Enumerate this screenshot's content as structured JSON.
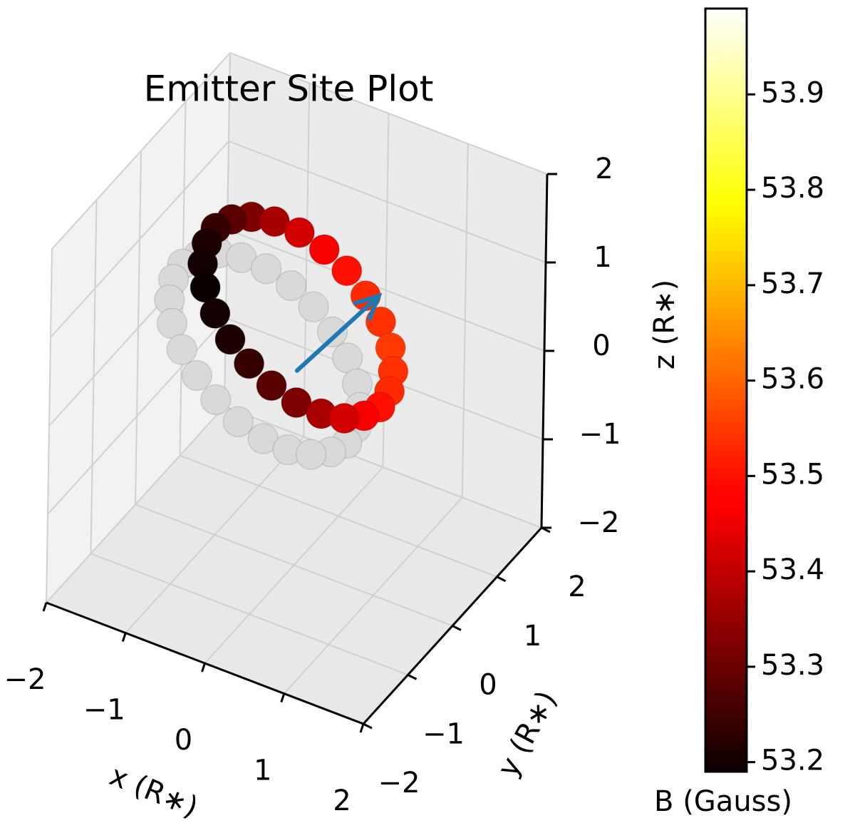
{
  "chart_data": {
    "type": "scatter3d",
    "title": "Emitter Site Plot",
    "xlabel": "x (R∗)",
    "ylabel": "y (R∗)",
    "zlabel": "z (R∗)",
    "xlim": [
      -2,
      2
    ],
    "ylim": [
      -2,
      2
    ],
    "zlim": [
      -2,
      2
    ],
    "xticks": [
      {
        "value": -2,
        "label": "−2"
      },
      {
        "value": -1,
        "label": "−1"
      },
      0,
      1,
      2
    ],
    "yticks": [
      {
        "value": -2,
        "label": "−2"
      },
      {
        "value": -1,
        "label": "−1"
      },
      0,
      1,
      2
    ],
    "zticks": [
      {
        "value": -2,
        "label": "−2"
      },
      {
        "value": -1,
        "label": "−1"
      },
      0,
      1,
      2
    ],
    "grid": true,
    "series": [
      {
        "color": "#d9d9d9",
        "x": [
          1.23,
          1.17,
          1.02,
          0.78,
          0.46,
          0.09,
          -0.3,
          -0.69,
          -1.06,
          -1.38,
          -1.62,
          -1.77,
          -1.83,
          -1.77,
          -1.62,
          -1.38,
          -1.06,
          -0.69,
          -0.3,
          0.09,
          0.46,
          0.78,
          1.02,
          1.17
        ],
        "y": [
          -1.08,
          -0.76,
          -0.41,
          -0.04,
          0.31,
          0.63,
          0.9,
          1.09,
          1.19,
          1.2,
          1.11,
          0.93,
          0.68,
          0.37,
          0.01,
          -0.36,
          -0.71,
          -1.03,
          -1.3,
          -1.49,
          -1.59,
          -1.6,
          -1.51,
          -1.33
        ],
        "z": [
          0.4,
          0.38,
          0.36,
          0.34,
          0.33,
          0.32,
          0.32,
          0.32,
          0.33,
          0.34,
          0.36,
          0.38,
          0.4,
          0.42,
          0.44,
          0.46,
          0.47,
          0.48,
          0.49,
          0.48,
          0.47,
          0.46,
          0.44,
          0.42
        ]
      },
      {
        "cmap": "hot",
        "x": [
          1.53,
          1.47,
          1.32,
          1.08,
          0.76,
          0.39,
          0,
          -0.39,
          -0.76,
          -1.08,
          -1.32,
          -1.47,
          -1.53,
          -1.47,
          -1.32,
          -1.08,
          -0.76,
          -0.39,
          0,
          0.39,
          0.76,
          1.08,
          1.32,
          1.47
        ],
        "y": [
          -0.88,
          -0.56,
          -0.21,
          0.16,
          0.51,
          0.83,
          1.1,
          1.29,
          1.39,
          1.4,
          1.31,
          1.13,
          0.88,
          0.57,
          0.21,
          -0.16,
          -0.51,
          -0.83,
          -1.1,
          -1.29,
          -1.39,
          -1.4,
          -1.31,
          -1.13
        ],
        "z": [
          0.8,
          0.78,
          0.76,
          0.74,
          0.73,
          0.72,
          0.72,
          0.72,
          0.73,
          0.74,
          0.76,
          0.78,
          0.8,
          0.82,
          0.84,
          0.86,
          0.87,
          0.88,
          0.89,
          0.88,
          0.87,
          0.86,
          0.84,
          0.82
        ],
        "values": [
          53.5,
          53.53,
          53.54,
          53.55,
          53.54,
          53.53,
          53.5,
          53.46,
          53.42,
          53.37,
          53.32,
          53.28,
          53.24,
          53.21,
          53.2,
          53.19,
          53.2,
          53.21,
          53.24,
          53.28,
          53.32,
          53.37,
          53.42,
          53.46
        ]
      }
    ],
    "arrow": {
      "x": [
        0,
        0.13
      ],
      "y": [
        0,
        1.6
      ],
      "z": [
        0.2,
        0.2
      ],
      "color": "#1f77b4"
    },
    "colorbar": {
      "label": "B (Gauss)",
      "cmap": "hot",
      "lim": [
        53.19,
        53.99
      ],
      "ticks": [
        53.2,
        53.3,
        53.4,
        53.5,
        53.6,
        53.7,
        53.8,
        53.9
      ]
    }
  }
}
